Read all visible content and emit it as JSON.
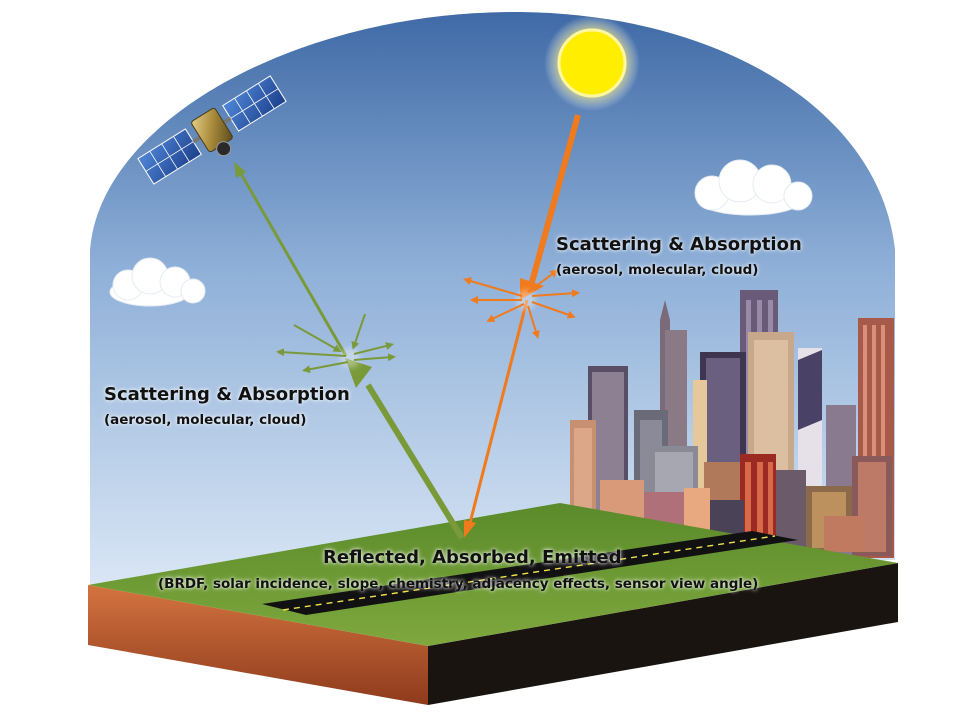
{
  "labels": {
    "upper_title": "Scattering & Absorption",
    "upper_sub": "(aerosol, molecular, cloud)",
    "lower_title": "Scattering & Absorption",
    "lower_sub": "(aerosol, molecular, cloud)",
    "ground_title": "Reflected, Absorbed, Emitted",
    "ground_sub": "(BRDF, solar incidence, slope, chemistry, adjacency effects, sensor view angle)"
  },
  "colors": {
    "sky_top": "#3f6aa6",
    "sky_bottom": "#d9e6f5",
    "sun": "#ffee00",
    "solar_ray": "#f07a1c",
    "sensor_ray": "#7a9a3a",
    "grass": "#6c9a35",
    "soil": "#c9683a",
    "road": "#111111"
  },
  "icons": {
    "sun": "sun-icon",
    "satellite": "satellite-icon",
    "clouds": "cloud-icon",
    "city": "city-skyline"
  }
}
